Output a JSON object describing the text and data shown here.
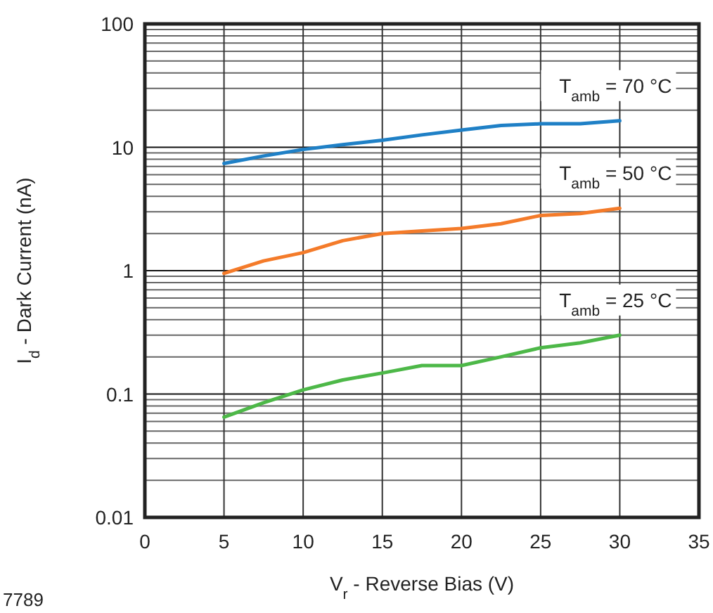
{
  "chart_data": {
    "type": "line",
    "xlabel": "V$_{r}$ - Reverse Bias (V)",
    "ylabel": "I$_{d}$ - Dark Current (nA)",
    "log": "y",
    "x": [
      5,
      7.5,
      10,
      12.5,
      15,
      17.5,
      20,
      22.5,
      25,
      27.5,
      30
    ],
    "series": [
      {
        "name": "T$_{amb}$ = 70 °C",
        "color": "#1f80c6",
        "values": [
          7.4,
          8.5,
          9.6,
          10.5,
          11.4,
          12.6,
          13.8,
          15.0,
          15.5,
          15.5,
          16.4
        ]
      },
      {
        "name": "T$_{amb}$ = 50 °C",
        "color": "#f47b2a",
        "values": [
          0.95,
          1.2,
          1.4,
          1.75,
          2.0,
          2.1,
          2.2,
          2.4,
          2.8,
          2.9,
          3.2
        ]
      },
      {
        "name": "T$_{amb}$ = 25 °C",
        "color": "#4db848",
        "values": [
          0.065,
          0.085,
          0.108,
          0.13,
          0.148,
          0.17,
          0.17,
          0.2,
          0.237,
          0.26,
          0.3
        ]
      }
    ],
    "xlim": [
      0,
      35
    ],
    "xticks": [
      0,
      5,
      10,
      15,
      20,
      25,
      30,
      35
    ],
    "ylim": [
      0.01,
      100
    ],
    "yticks": [
      0.01,
      {
        "value": 0.02,
        "label": null
      },
      {
        "value": 0.03,
        "label": null
      },
      {
        "value": 0.04,
        "label": null
      },
      {
        "value": 0.05,
        "label": null
      },
      {
        "value": 0.06,
        "label": null
      },
      {
        "value": 0.07,
        "label": null
      },
      {
        "value": 0.08,
        "label": null
      },
      {
        "value": 0.09,
        "label": null
      },
      0.1,
      {
        "value": 0.2,
        "label": null
      },
      {
        "value": 0.3,
        "label": null
      },
      {
        "value": 0.4,
        "label": null
      },
      {
        "value": 0.5,
        "label": null
      },
      {
        "value": 0.6,
        "label": null
      },
      {
        "value": 0.7,
        "label": null
      },
      {
        "value": 0.8,
        "label": null
      },
      {
        "value": 0.9,
        "label": null
      },
      1,
      {
        "value": 2,
        "label": null
      },
      {
        "value": 3,
        "label": null
      },
      {
        "value": 4,
        "label": null
      },
      {
        "value": 5,
        "label": null
      },
      {
        "value": 6,
        "label": null
      },
      {
        "value": 7,
        "label": null
      },
      {
        "value": 8,
        "label": null
      },
      {
        "value": 9,
        "label": null
      },
      10,
      {
        "value": 20,
        "label": null
      },
      {
        "value": 30,
        "label": null
      },
      {
        "value": 40,
        "label": null
      },
      {
        "value": 50,
        "label": null
      },
      {
        "value": 60,
        "label": null
      },
      {
        "value": 70,
        "label": null
      },
      {
        "value": 80,
        "label": null
      },
      {
        "value": 90,
        "label": null
      },
      100
    ],
    "grid": true,
    "marker": "none",
    "line_style": "solid",
    "annotations": [
      "7789"
    ]
  }
}
